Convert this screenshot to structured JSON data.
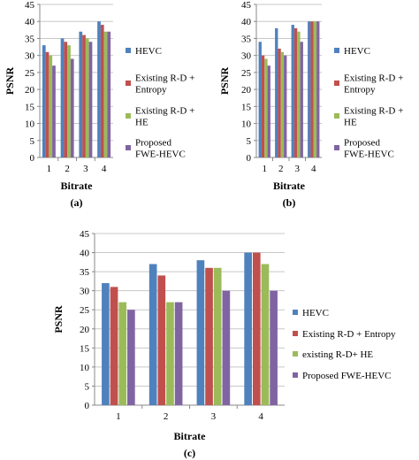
{
  "chart_data": [
    {
      "type": "bar",
      "panel_label": "(a)",
      "categories": [
        "1",
        "2",
        "3",
        "4"
      ],
      "series": [
        {
          "name": "HEVC",
          "values": [
            33,
            35,
            37,
            40
          ]
        },
        {
          "name": "Existing R-D + Entropy",
          "values": [
            31,
            34,
            36,
            39
          ]
        },
        {
          "name": "Existing R-D + HE",
          "values": [
            30,
            33,
            35,
            37
          ]
        },
        {
          "name": "Proposed FWE-HEVC",
          "values": [
            27,
            29,
            34,
            37
          ]
        }
      ],
      "xlabel": "Bitrate",
      "ylabel": "PSNR",
      "ylim": [
        0,
        45
      ],
      "yticks": [
        "0",
        "5",
        "10",
        "15",
        "20",
        "25",
        "30",
        "35",
        "40",
        "45"
      ],
      "grid": "horizontal",
      "legend": "right"
    },
    {
      "type": "bar",
      "panel_label": "(b)",
      "categories": [
        "1",
        "2",
        "3",
        "4"
      ],
      "series": [
        {
          "name": "HEVC",
          "values": [
            34,
            38,
            39,
            40
          ]
        },
        {
          "name": "Existing R-D + Entropy",
          "values": [
            30,
            32,
            38,
            40
          ]
        },
        {
          "name": "Existing R-D + HE",
          "values": [
            29,
            31,
            37,
            40
          ]
        },
        {
          "name": "Proposed FWE-HEVC",
          "values": [
            27,
            30,
            34,
            40
          ]
        }
      ],
      "xlabel": "Bitrate",
      "ylabel": "PSNR",
      "ylim": [
        0,
        45
      ],
      "yticks": [
        "0",
        "5",
        "10",
        "15",
        "20",
        "25",
        "30",
        "35",
        "40",
        "45"
      ],
      "grid": "horizontal",
      "legend": "right"
    },
    {
      "type": "bar",
      "panel_label": "(c)",
      "categories": [
        "1",
        "2",
        "3",
        "4"
      ],
      "series": [
        {
          "name": "HEVC",
          "values": [
            32,
            37,
            38,
            40
          ]
        },
        {
          "name": "Existing R-D + Entropy",
          "values": [
            31,
            34,
            36,
            40
          ]
        },
        {
          "name": "existing R-D+ HE",
          "values": [
            27,
            27,
            36,
            37
          ]
        },
        {
          "name": "Proposed FWE-HEVC",
          "values": [
            25,
            27,
            30,
            30
          ]
        }
      ],
      "xlabel": "Bitrate",
      "ylabel": "PSNR",
      "ylim": [
        0,
        45
      ],
      "yticks": [
        "0",
        "5",
        "10",
        "15",
        "20",
        "25",
        "30",
        "35",
        "40",
        "45"
      ],
      "grid": "horizontal",
      "legend": "right"
    }
  ],
  "colors": [
    "#4f81bd",
    "#c0504d",
    "#9bbb59",
    "#8064a2"
  ],
  "legend_labels": [
    [
      "HEVC",
      "Existing R-D +|Entropy",
      "Existing R-D +|HE",
      "Proposed|FWE-HEVC"
    ],
    [
      "HEVC",
      "Existing R-D +|Entropy",
      "Existing R-D +|HE",
      "Proposed|FWE-HEVC"
    ],
    [
      "HEVC",
      "Existing R-D + Entropy",
      "existing R-D+ HE",
      "Proposed FWE-HEVC"
    ]
  ]
}
